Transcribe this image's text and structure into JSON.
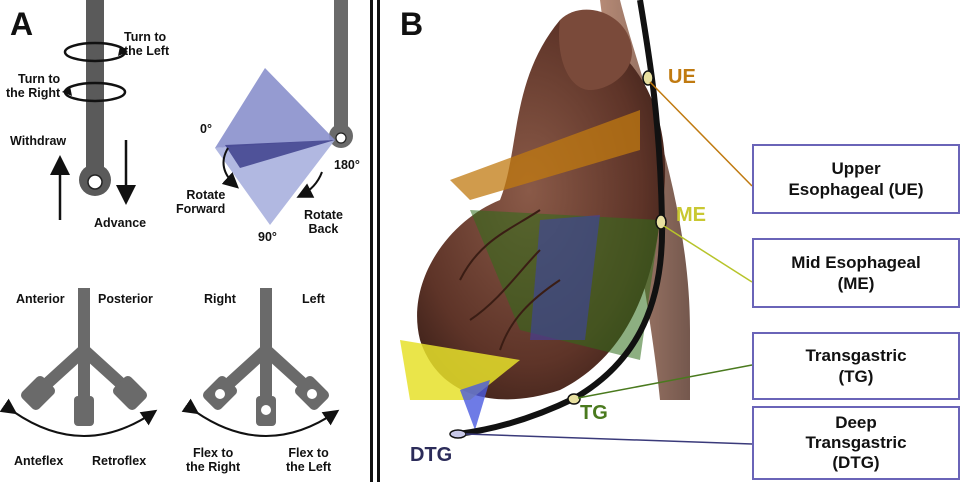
{
  "panel_a": {
    "letter": "A",
    "turn_left": "Turn to\nthe Left",
    "turn_right": "Turn to\nthe Right",
    "withdraw": "Withdraw",
    "advance": "Advance",
    "deg_0": "0°",
    "deg_180": "180°",
    "deg_90": "90°",
    "rotate_forward": "Rotate\nForward",
    "rotate_back": "Rotate\nBack",
    "anterior": "Anterior",
    "posterior": "Posterior",
    "anteflex": "Anteflex",
    "retroflex": "Retroflex",
    "right": "Right",
    "left": "Left",
    "flex_right": "Flex to\nthe Right",
    "flex_left": "Flex to\nthe Left"
  },
  "panel_b": {
    "letter": "B",
    "tags": {
      "ue": "UE",
      "me": "ME",
      "tg": "TG",
      "dtg": "DTG"
    },
    "boxes": {
      "ue": "Upper\nEsophageal (UE)",
      "me": "Mid Esophageal\n(ME)",
      "tg": "Transgastric\n(TG)",
      "dtg": "Deep\nTransgastric\n(DTG)"
    }
  },
  "colors": {
    "probe": "#555555",
    "ue": "#c07a10",
    "me": "#c9c832",
    "tg": "#4a7a1e",
    "dtg": "#2c2c5a",
    "box_border": "#6a64b8",
    "heart": "#6b4034"
  }
}
